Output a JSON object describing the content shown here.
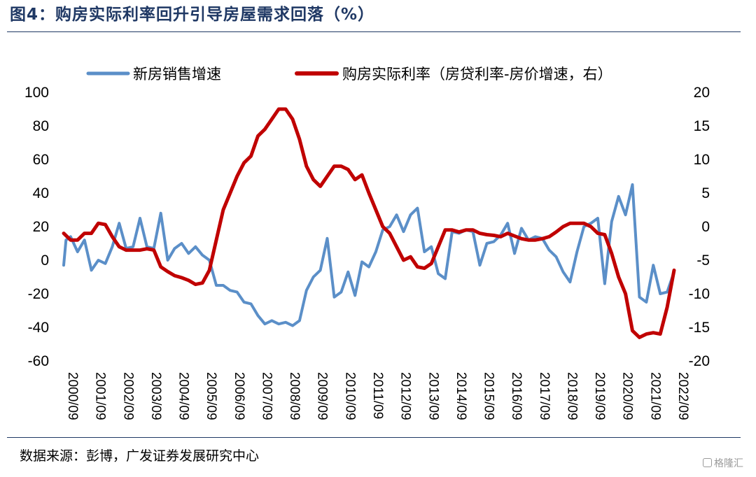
{
  "header": {
    "title": "图4：购房实际利率回升引导房屋需求回落（%）"
  },
  "footer": {
    "source": "数据来源：彭博，广发证券发展研究中心",
    "watermark": "格隆汇"
  },
  "chart_data": {
    "type": "line",
    "title": "图4：购房实际利率回升引导房屋需求回落（%）",
    "x_labels": [
      "2000/09",
      "2001/09",
      "2002/09",
      "2003/09",
      "2004/09",
      "2005/09",
      "2006/09",
      "2007/09",
      "2008/09",
      "2009/09",
      "2010/09",
      "2011/09",
      "2012/09",
      "2013/09",
      "2014/09",
      "2015/09",
      "2016/09",
      "2017/09",
      "2018/09",
      "2019/09",
      "2020/09",
      "2021/09",
      "2022/09"
    ],
    "x_range": [
      "2000-09",
      "2022-09"
    ],
    "ylim_left": [
      -60,
      100
    ],
    "yticks_left": [
      "100",
      "80",
      "60",
      "40",
      "20",
      "0",
      "-20",
      "-40",
      "-60"
    ],
    "ylim_right": [
      -20,
      20
    ],
    "yticks_right": [
      "20",
      "15",
      "10",
      "5",
      "0",
      "-5",
      "-10",
      "-15",
      "-20"
    ],
    "grid": false,
    "legend_position": "top",
    "series": [
      {
        "name": "新房销售增速",
        "axis": "left",
        "color": "#5b8fc8",
        "points": [
          [
            "2000-09",
            -3
          ],
          [
            "2000-10",
            12
          ],
          [
            "2000-12",
            14
          ],
          [
            "2001-03",
            5
          ],
          [
            "2001-06",
            12
          ],
          [
            "2001-09",
            -6
          ],
          [
            "2001-12",
            0
          ],
          [
            "2002-03",
            -2
          ],
          [
            "2002-06",
            8
          ],
          [
            "2002-09",
            22
          ],
          [
            "2002-12",
            7
          ],
          [
            "2003-03",
            8
          ],
          [
            "2003-06",
            25
          ],
          [
            "2003-09",
            8
          ],
          [
            "2003-12",
            7
          ],
          [
            "2004-03",
            28
          ],
          [
            "2004-06",
            0
          ],
          [
            "2004-09",
            7
          ],
          [
            "2004-12",
            10
          ],
          [
            "2005-03",
            4
          ],
          [
            "2005-06",
            8
          ],
          [
            "2005-09",
            3
          ],
          [
            "2005-12",
            0
          ],
          [
            "2006-03",
            -15
          ],
          [
            "2006-06",
            -15
          ],
          [
            "2006-09",
            -18
          ],
          [
            "2006-12",
            -19
          ],
          [
            "2007-03",
            -25
          ],
          [
            "2007-06",
            -26
          ],
          [
            "2007-09",
            -33
          ],
          [
            "2007-12",
            -38
          ],
          [
            "2008-03",
            -36
          ],
          [
            "2008-06",
            -38
          ],
          [
            "2008-09",
            -37
          ],
          [
            "2008-12",
            -39
          ],
          [
            "2009-03",
            -36
          ],
          [
            "2009-06",
            -18
          ],
          [
            "2009-09",
            -10
          ],
          [
            "2009-12",
            -6
          ],
          [
            "2010-03",
            13
          ],
          [
            "2010-06",
            -22
          ],
          [
            "2010-09",
            -19
          ],
          [
            "2010-12",
            -7
          ],
          [
            "2011-03",
            -21
          ],
          [
            "2011-06",
            -1
          ],
          [
            "2011-09",
            -4
          ],
          [
            "2011-12",
            5
          ],
          [
            "2012-03",
            18
          ],
          [
            "2012-06",
            20
          ],
          [
            "2012-09",
            27
          ],
          [
            "2012-12",
            17
          ],
          [
            "2013-03",
            27
          ],
          [
            "2013-06",
            31
          ],
          [
            "2013-09",
            5
          ],
          [
            "2013-12",
            8
          ],
          [
            "2014-03",
            -8
          ],
          [
            "2014-06",
            -11
          ],
          [
            "2014-09",
            17
          ],
          [
            "2014-12",
            16
          ],
          [
            "2015-03",
            18
          ],
          [
            "2015-06",
            17
          ],
          [
            "2015-09",
            -3
          ],
          [
            "2015-12",
            10
          ],
          [
            "2016-03",
            11
          ],
          [
            "2016-06",
            15
          ],
          [
            "2016-09",
            22
          ],
          [
            "2016-12",
            4
          ],
          [
            "2017-03",
            19
          ],
          [
            "2017-06",
            12
          ],
          [
            "2017-09",
            14
          ],
          [
            "2017-12",
            13
          ],
          [
            "2018-03",
            6
          ],
          [
            "2018-06",
            2
          ],
          [
            "2018-09",
            -7
          ],
          [
            "2018-12",
            -13
          ],
          [
            "2019-03",
            5
          ],
          [
            "2019-06",
            20
          ],
          [
            "2019-09",
            22
          ],
          [
            "2019-12",
            25
          ],
          [
            "2020-03",
            -14
          ],
          [
            "2020-06",
            23
          ],
          [
            "2020-09",
            38
          ],
          [
            "2020-12",
            27
          ],
          [
            "2021-03",
            45
          ],
          [
            "2021-06",
            -22
          ],
          [
            "2021-09",
            -25
          ],
          [
            "2021-12",
            -3
          ],
          [
            "2022-03",
            -20
          ],
          [
            "2022-06",
            -19
          ],
          [
            "2022-09",
            -7
          ]
        ]
      },
      {
        "name": "购房实际利率（房贷利率-房价增速，右）",
        "axis": "right",
        "color": "#c00000",
        "points": [
          [
            "2000-09",
            -1
          ],
          [
            "2000-12",
            -2
          ],
          [
            "2001-03",
            -2
          ],
          [
            "2001-06",
            -1
          ],
          [
            "2001-09",
            -1
          ],
          [
            "2001-12",
            0.5
          ],
          [
            "2002-03",
            0.3
          ],
          [
            "2002-06",
            -1.5
          ],
          [
            "2002-09",
            -3
          ],
          [
            "2002-12",
            -3.5
          ],
          [
            "2003-03",
            -3.5
          ],
          [
            "2003-06",
            -3.5
          ],
          [
            "2003-09",
            -3.3
          ],
          [
            "2003-12",
            -3.5
          ],
          [
            "2004-03",
            -6
          ],
          [
            "2004-06",
            -6.7
          ],
          [
            "2004-09",
            -7.3
          ],
          [
            "2004-12",
            -7.6
          ],
          [
            "2005-03",
            -8
          ],
          [
            "2005-06",
            -8.6
          ],
          [
            "2005-09",
            -8.4
          ],
          [
            "2005-12",
            -6.5
          ],
          [
            "2006-03",
            -2
          ],
          [
            "2006-06",
            2.5
          ],
          [
            "2006-09",
            5
          ],
          [
            "2006-12",
            7.5
          ],
          [
            "2007-03",
            9.5
          ],
          [
            "2007-06",
            10.5
          ],
          [
            "2007-09",
            13.5
          ],
          [
            "2007-12",
            14.5
          ],
          [
            "2008-03",
            16
          ],
          [
            "2008-06",
            17.5
          ],
          [
            "2008-09",
            17.5
          ],
          [
            "2008-12",
            16
          ],
          [
            "2009-03",
            13
          ],
          [
            "2009-06",
            9
          ],
          [
            "2009-09",
            7
          ],
          [
            "2009-12",
            6
          ],
          [
            "2010-03",
            7.5
          ],
          [
            "2010-06",
            9
          ],
          [
            "2010-09",
            9
          ],
          [
            "2010-12",
            8.5
          ],
          [
            "2011-03",
            7
          ],
          [
            "2011-06",
            7.7
          ],
          [
            "2011-09",
            5
          ],
          [
            "2011-12",
            2.5
          ],
          [
            "2012-03",
            0
          ],
          [
            "2012-06",
            -1
          ],
          [
            "2012-09",
            -3
          ],
          [
            "2012-12",
            -5
          ],
          [
            "2013-03",
            -4.5
          ],
          [
            "2013-06",
            -6
          ],
          [
            "2013-09",
            -6.2
          ],
          [
            "2013-12",
            -5.5
          ],
          [
            "2014-03",
            -3
          ],
          [
            "2014-06",
            -0.5
          ],
          [
            "2014-09",
            -0.5
          ],
          [
            "2014-12",
            -0.8
          ],
          [
            "2015-03",
            -0.5
          ],
          [
            "2015-06",
            -0.5
          ],
          [
            "2015-09",
            -1
          ],
          [
            "2015-12",
            -1.2
          ],
          [
            "2016-03",
            -1.3
          ],
          [
            "2016-06",
            -1.5
          ],
          [
            "2016-09",
            -1
          ],
          [
            "2016-12",
            -1.4
          ],
          [
            "2017-03",
            -1.8
          ],
          [
            "2017-06",
            -2
          ],
          [
            "2017-09",
            -2
          ],
          [
            "2017-12",
            -1.8
          ],
          [
            "2018-03",
            -1.5
          ],
          [
            "2018-06",
            -0.8
          ],
          [
            "2018-09",
            0
          ],
          [
            "2018-12",
            0.5
          ],
          [
            "2019-03",
            0.5
          ],
          [
            "2019-06",
            0.5
          ],
          [
            "2019-09",
            0
          ],
          [
            "2019-12",
            -1
          ],
          [
            "2020-03",
            -1.2
          ],
          [
            "2020-06",
            -4
          ],
          [
            "2020-09",
            -7.5
          ],
          [
            "2020-12",
            -10
          ],
          [
            "2021-03",
            -15.5
          ],
          [
            "2021-06",
            -16.5
          ],
          [
            "2021-09",
            -16
          ],
          [
            "2021-12",
            -15.8
          ],
          [
            "2022-03",
            -16
          ],
          [
            "2022-06",
            -12
          ],
          [
            "2022-09",
            -6.5
          ]
        ]
      }
    ]
  }
}
